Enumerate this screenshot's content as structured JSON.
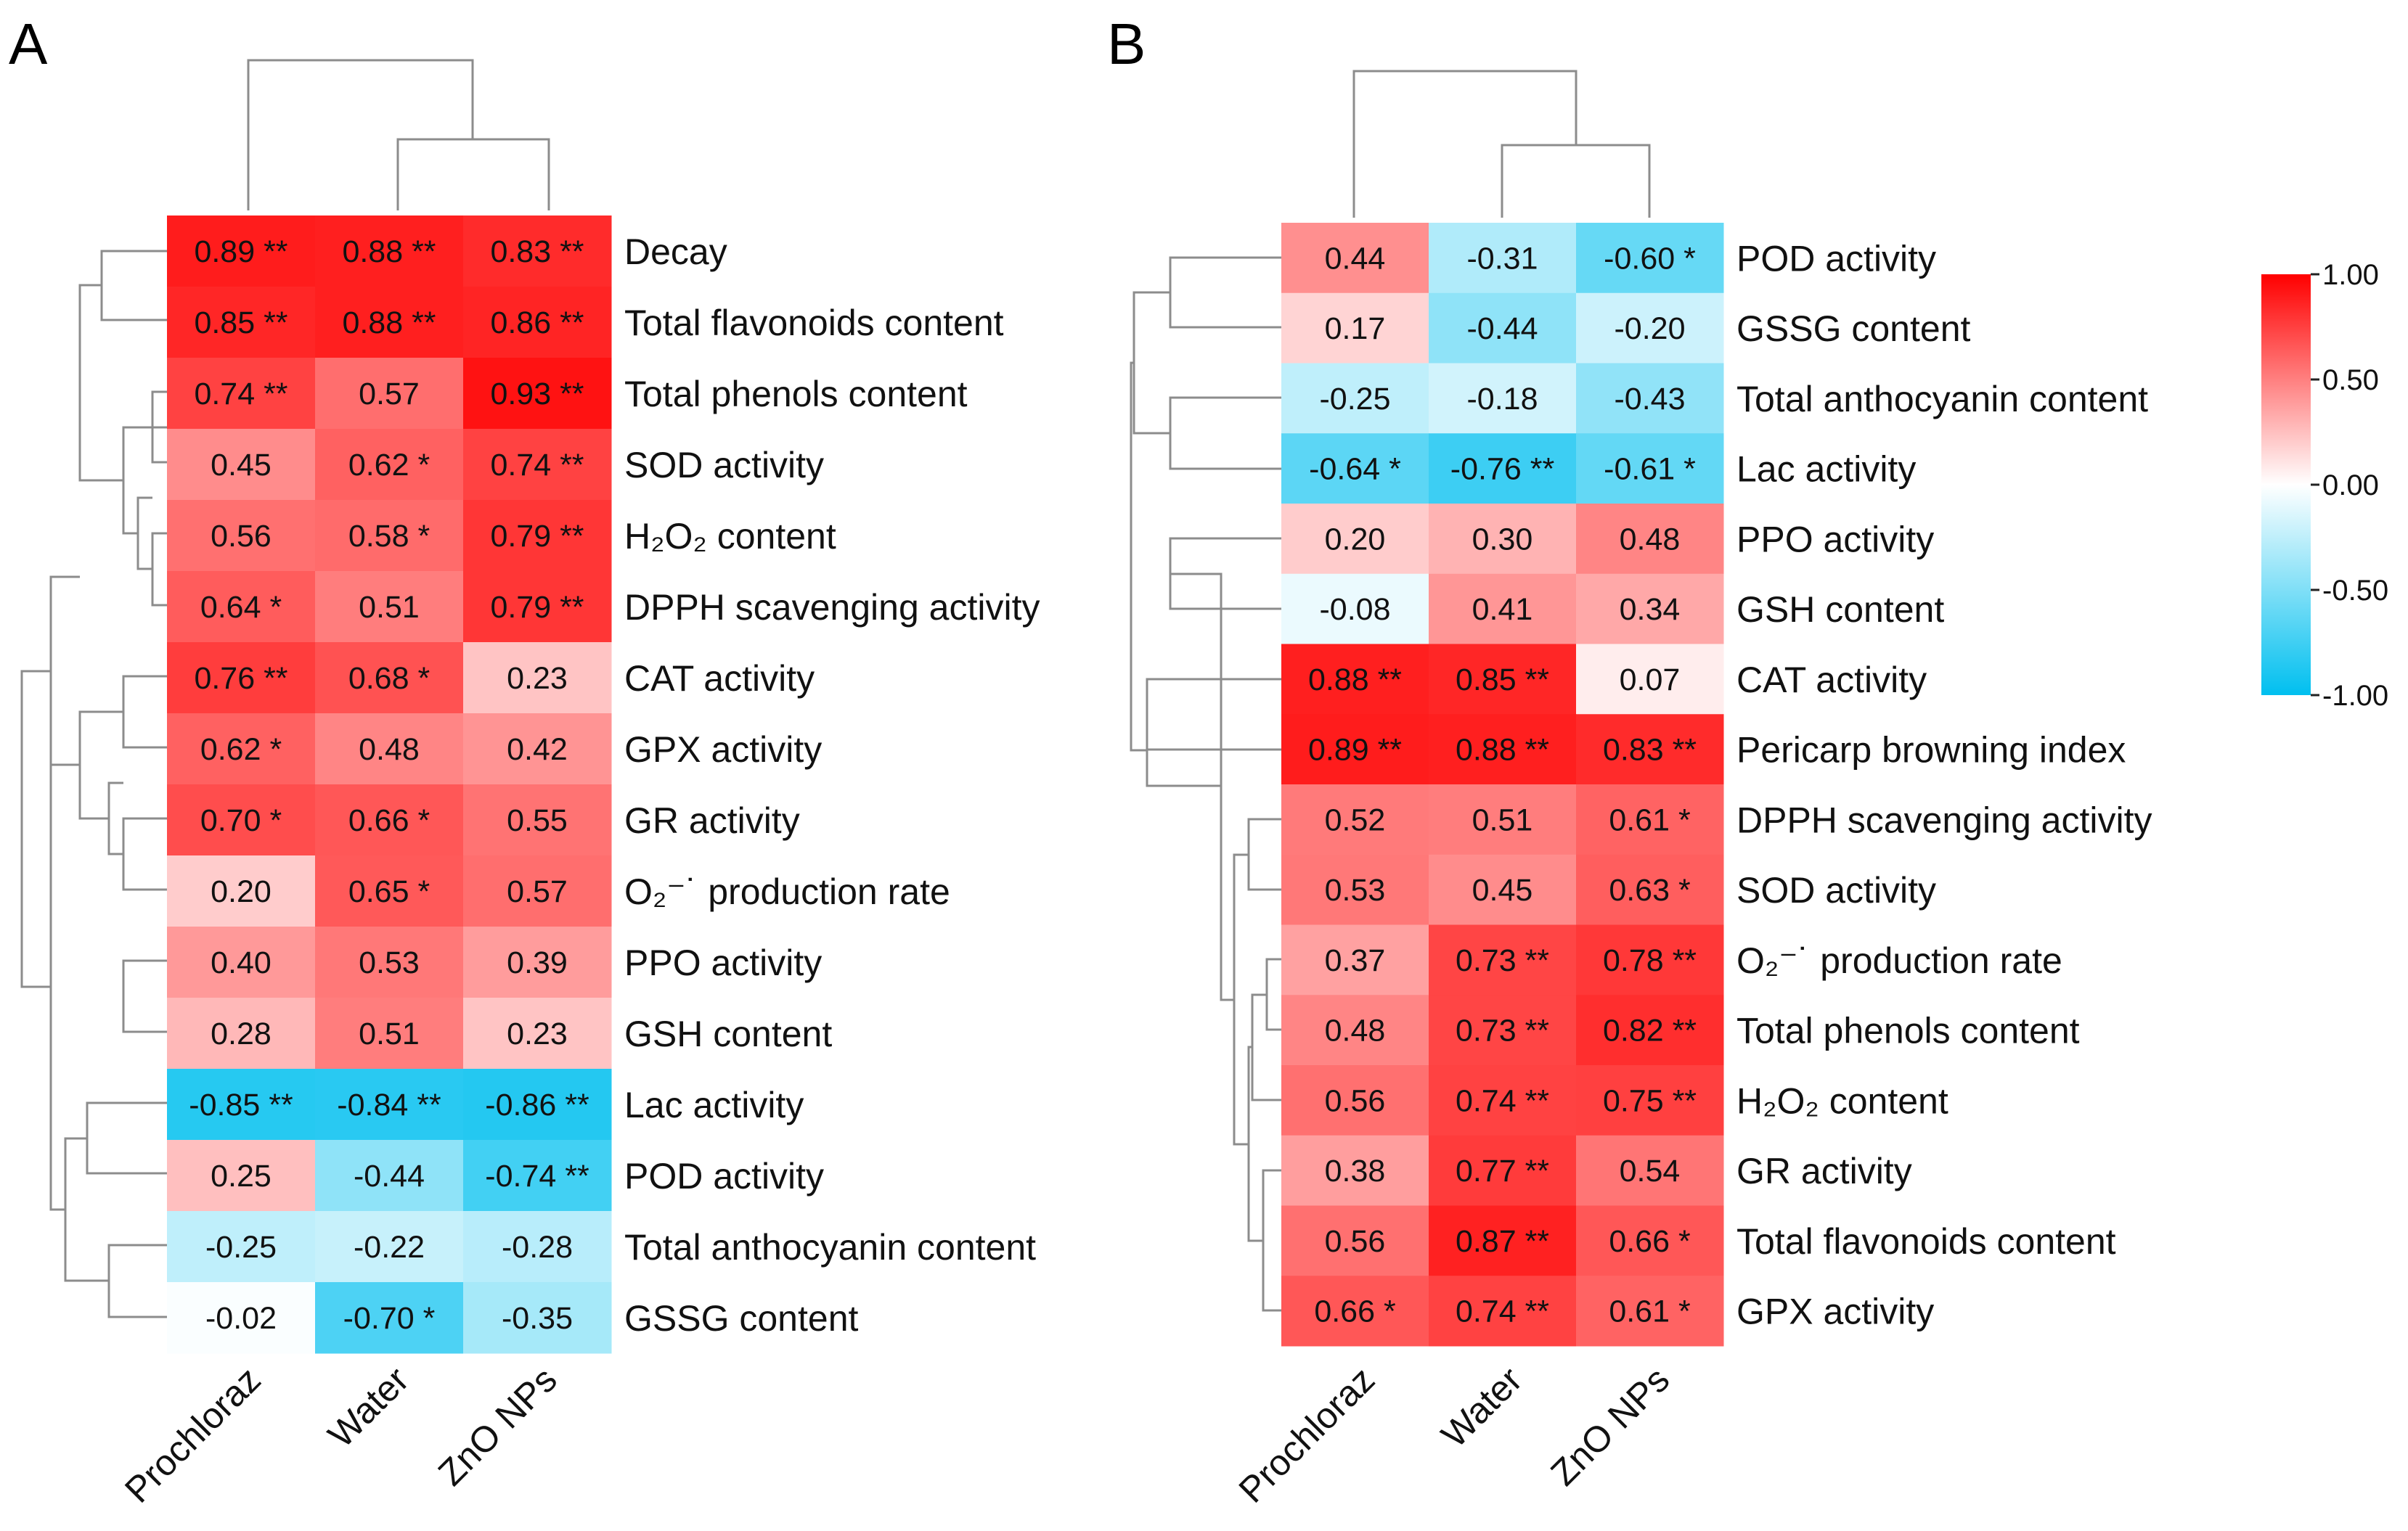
{
  "chart_data": [
    {
      "panel": "A",
      "type": "heatmap",
      "columns": [
        "Prochloraz",
        "Water",
        "ZnO NPs"
      ],
      "rows": [
        {
          "label": "Decay",
          "values": [
            0.89,
            0.88,
            0.83
          ],
          "sig": [
            "**",
            "**",
            "**"
          ]
        },
        {
          "label": "Total flavonoids content",
          "values": [
            0.85,
            0.88,
            0.86
          ],
          "sig": [
            "**",
            "**",
            "**"
          ]
        },
        {
          "label": "Total phenols content",
          "values": [
            0.74,
            0.57,
            0.93
          ],
          "sig": [
            "**",
            "",
            "**"
          ]
        },
        {
          "label": "SOD activity",
          "values": [
            0.45,
            0.62,
            0.74
          ],
          "sig": [
            "",
            "*",
            "**"
          ]
        },
        {
          "label": "H₂O₂ content",
          "values": [
            0.56,
            0.58,
            0.79
          ],
          "sig": [
            "",
            "*",
            "**"
          ]
        },
        {
          "label": "DPPH scavenging activity",
          "values": [
            0.64,
            0.51,
            0.79
          ],
          "sig": [
            "*",
            "",
            "**"
          ]
        },
        {
          "label": "CAT activity",
          "values": [
            0.76,
            0.68,
            0.23
          ],
          "sig": [
            "**",
            "*",
            ""
          ]
        },
        {
          "label": "GPX activity",
          "values": [
            0.62,
            0.48,
            0.42
          ],
          "sig": [
            "*",
            "",
            ""
          ]
        },
        {
          "label": "GR activity",
          "values": [
            0.7,
            0.66,
            0.55
          ],
          "sig": [
            "*",
            "*",
            ""
          ]
        },
        {
          "label": "O₂⁻˙ production rate",
          "values": [
            0.2,
            0.65,
            0.57
          ],
          "sig": [
            "",
            "*",
            ""
          ]
        },
        {
          "label": "PPO activity",
          "values": [
            0.4,
            0.53,
            0.39
          ],
          "sig": [
            "",
            "",
            ""
          ]
        },
        {
          "label": "GSH content",
          "values": [
            0.28,
            0.51,
            0.23
          ],
          "sig": [
            "",
            "",
            ""
          ]
        },
        {
          "label": "Lac activity",
          "values": [
            -0.85,
            -0.84,
            -0.86
          ],
          "sig": [
            "**",
            "**",
            "**"
          ]
        },
        {
          "label": "POD activity",
          "values": [
            0.25,
            -0.44,
            -0.74
          ],
          "sig": [
            "",
            "",
            "**"
          ]
        },
        {
          "label": "Total anthocyanin content",
          "values": [
            -0.25,
            -0.22,
            -0.28
          ],
          "sig": [
            "",
            "",
            ""
          ]
        },
        {
          "label": "GSSG content",
          "values": [
            -0.02,
            -0.7,
            -0.35
          ],
          "sig": [
            "",
            "*",
            ""
          ]
        }
      ]
    },
    {
      "panel": "B",
      "type": "heatmap",
      "columns": [
        "Prochloraz",
        "Water",
        "ZnO NPs"
      ],
      "rows": [
        {
          "label": "POD activity",
          "values": [
            0.44,
            -0.31,
            -0.6
          ],
          "sig": [
            "",
            "",
            "*"
          ]
        },
        {
          "label": "GSSG content",
          "values": [
            0.17,
            -0.44,
            -0.2
          ],
          "sig": [
            "",
            "",
            ""
          ]
        },
        {
          "label": "Total anthocyanin content",
          "values": [
            -0.25,
            -0.18,
            -0.43
          ],
          "sig": [
            "",
            "",
            ""
          ]
        },
        {
          "label": "Lac activity",
          "values": [
            -0.64,
            -0.76,
            -0.61
          ],
          "sig": [
            "*",
            "**",
            "*"
          ]
        },
        {
          "label": "PPO activity",
          "values": [
            0.2,
            0.3,
            0.48
          ],
          "sig": [
            "",
            "",
            ""
          ]
        },
        {
          "label": "GSH content",
          "values": [
            -0.08,
            0.41,
            0.34
          ],
          "sig": [
            "",
            "",
            ""
          ]
        },
        {
          "label": "CAT activity",
          "values": [
            0.88,
            0.85,
            0.07
          ],
          "sig": [
            "**",
            "**",
            ""
          ]
        },
        {
          "label": "Pericarp browning index",
          "values": [
            0.89,
            0.88,
            0.83
          ],
          "sig": [
            "**",
            "**",
            "**"
          ]
        },
        {
          "label": "DPPH scavenging activity",
          "values": [
            0.52,
            0.51,
            0.61
          ],
          "sig": [
            "",
            "",
            "*"
          ]
        },
        {
          "label": "SOD activity",
          "values": [
            0.53,
            0.45,
            0.63
          ],
          "sig": [
            "",
            "",
            "*"
          ]
        },
        {
          "label": "O₂⁻˙ production rate",
          "values": [
            0.37,
            0.73,
            0.78
          ],
          "sig": [
            "",
            "**",
            "**"
          ]
        },
        {
          "label": "Total phenols content",
          "values": [
            0.48,
            0.73,
            0.82
          ],
          "sig": [
            "",
            "**",
            "**"
          ]
        },
        {
          "label": "H₂O₂ content",
          "values": [
            0.56,
            0.74,
            0.75
          ],
          "sig": [
            "",
            "**",
            "**"
          ]
        },
        {
          "label": "GR activity",
          "values": [
            0.38,
            0.77,
            0.54
          ],
          "sig": [
            "",
            "**",
            ""
          ]
        },
        {
          "label": "Total flavonoids content",
          "values": [
            0.56,
            0.87,
            0.66
          ],
          "sig": [
            "",
            "**",
            "*"
          ]
        },
        {
          "label": "GPX activity",
          "values": [
            0.66,
            0.74,
            0.61
          ],
          "sig": [
            "*",
            "**",
            "*"
          ]
        }
      ]
    }
  ],
  "colorbar": {
    "min": -1.0,
    "max": 1.0,
    "ticks": [
      "1.00",
      "0.50",
      "0.00",
      "-0.50",
      "-1.00"
    ],
    "colors": {
      "high": "#ff0000",
      "mid": "#ffffff",
      "low": "#00bfef"
    }
  }
}
